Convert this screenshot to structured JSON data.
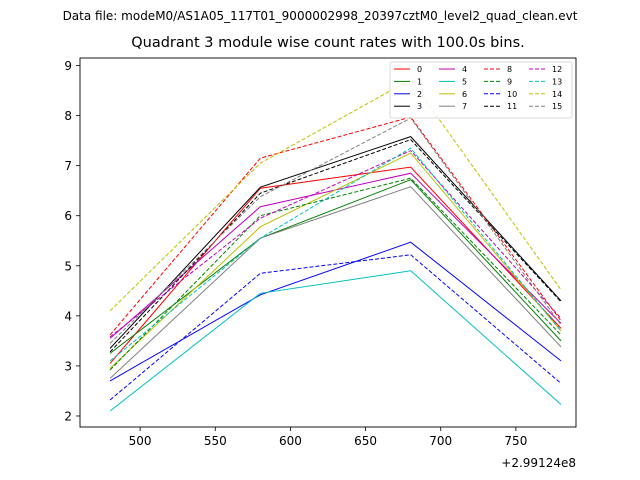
{
  "suptitle": "Data file: modeM0/AS1A05_117T01_9000002998_20397cztM0_level2_quad_clean.evt",
  "chart_data": {
    "type": "line",
    "title": "Quadrant 3 module wise count rates with 100.0s bins.",
    "xlabel": "",
    "ylabel": "",
    "x_offset_text": "+2.99124e8",
    "xlim": [
      460,
      790
    ],
    "ylim": [
      1.78,
      9.15
    ],
    "xticks": [
      500,
      550,
      600,
      650,
      700,
      750
    ],
    "xtick_labels": [
      "500",
      "550",
      "600",
      "650",
      "700",
      "750"
    ],
    "yticks": [
      2,
      3,
      4,
      5,
      6,
      7,
      8,
      9
    ],
    "ytick_labels": [
      "2",
      "3",
      "4",
      "5",
      "6",
      "7",
      "8",
      "9"
    ],
    "grid": false,
    "legend_position": "top-right",
    "x": [
      480,
      580,
      680,
      780
    ],
    "series": [
      {
        "name": "0",
        "color": "#ff0000",
        "dashed": false,
        "values": [
          3.05,
          6.55,
          6.97,
          3.75
        ]
      },
      {
        "name": "1",
        "color": "#008000",
        "dashed": false,
        "values": [
          3.25,
          5.55,
          6.72,
          3.5
        ]
      },
      {
        "name": "2",
        "color": "#0000ff",
        "dashed": false,
        "values": [
          2.7,
          4.42,
          5.47,
          3.1
        ]
      },
      {
        "name": "3",
        "color": "#000000",
        "dashed": false,
        "values": [
          3.35,
          6.57,
          7.58,
          4.3
        ]
      },
      {
        "name": "4",
        "color": "#bf00bf",
        "dashed": false,
        "values": [
          3.55,
          6.18,
          6.85,
          3.85
        ]
      },
      {
        "name": "5",
        "color": "#00bfbf",
        "dashed": false,
        "values": [
          2.1,
          4.45,
          4.9,
          2.23
        ]
      },
      {
        "name": "6",
        "color": "#bfbf00",
        "dashed": false,
        "values": [
          2.95,
          5.78,
          7.25,
          3.7
        ]
      },
      {
        "name": "7",
        "color": "#808080",
        "dashed": false,
        "values": [
          2.75,
          5.55,
          6.58,
          3.38
        ]
      },
      {
        "name": "8",
        "color": "#ff0000",
        "dashed": true,
        "values": [
          3.62,
          7.15,
          7.97,
          3.9
        ]
      },
      {
        "name": "9",
        "color": "#008000",
        "dashed": true,
        "values": [
          2.92,
          6.0,
          6.75,
          3.62
        ]
      },
      {
        "name": "10",
        "color": "#0000ff",
        "dashed": true,
        "values": [
          2.32,
          4.85,
          5.22,
          2.65
        ]
      },
      {
        "name": "11",
        "color": "#000000",
        "dashed": true,
        "values": [
          3.28,
          6.45,
          7.52,
          4.28
        ]
      },
      {
        "name": "12",
        "color": "#bf00bf",
        "dashed": true,
        "values": [
          3.58,
          5.95,
          7.3,
          3.95
        ]
      },
      {
        "name": "13",
        "color": "#00bfbf",
        "dashed": true,
        "values": [
          3.1,
          5.55,
          7.35,
          3.7
        ]
      },
      {
        "name": "14",
        "color": "#bfbf00",
        "dashed": true,
        "values": [
          4.1,
          7.05,
          8.72,
          4.52
        ]
      },
      {
        "name": "15",
        "color": "#808080",
        "dashed": true,
        "values": [
          3.45,
          6.38,
          7.95,
          3.82
        ]
      }
    ]
  }
}
